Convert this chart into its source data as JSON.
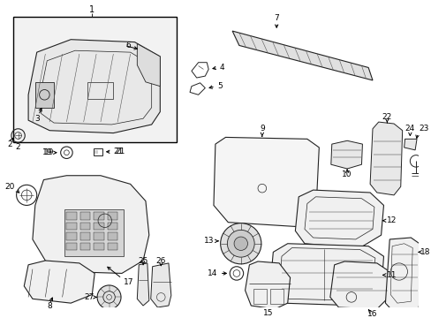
{
  "bg_color": "#ffffff",
  "lc": "#000000",
  "pc": "#222222",
  "box_bg": "#f0f0f0",
  "figsize": [
    4.89,
    3.6
  ],
  "dpi": 100
}
